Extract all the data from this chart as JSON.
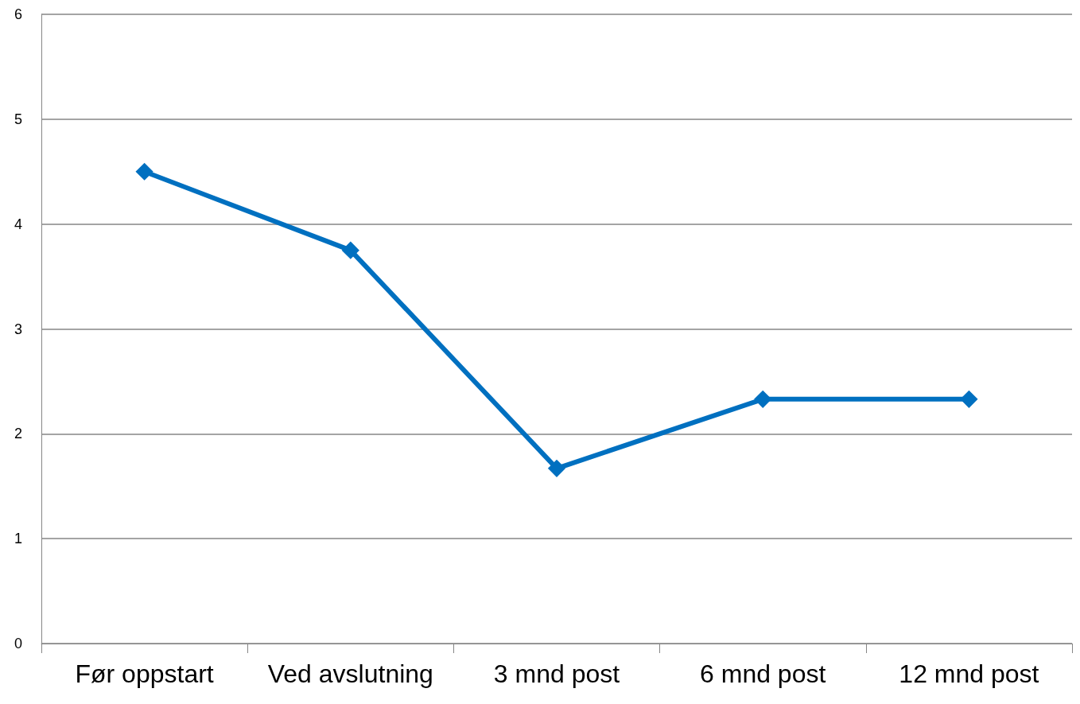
{
  "chart_data": {
    "type": "line",
    "categories": [
      "Før oppstart",
      "Ved avslutning",
      "3 mnd post",
      "6 mnd post",
      "12 mnd post"
    ],
    "series": [
      {
        "color": "#0070c0",
        "values": [
          4.5,
          3.75,
          1.67,
          2.33,
          2.33
        ]
      }
    ],
    "ylim": [
      0,
      6
    ],
    "yticks": [
      0,
      1,
      2,
      3,
      4,
      5,
      6
    ],
    "grid": "y",
    "marker": "diamond",
    "line_style": "solid"
  }
}
